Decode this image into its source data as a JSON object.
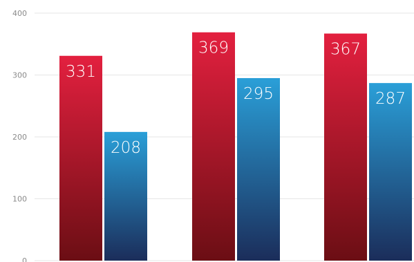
{
  "chart_data": {
    "type": "bar",
    "categories": [
      "",
      "",
      ""
    ],
    "series": [
      {
        "values": [
          331,
          369,
          367
        ],
        "color_top": "#e3203f",
        "color_bottom": "#6b0e14"
      },
      {
        "values": [
          208,
          295,
          287
        ],
        "color_top": "#2a9fd8",
        "color_bottom": "#1b2d5a"
      }
    ],
    "ylim": [
      0,
      400
    ],
    "yticks": [
      0,
      100,
      200,
      300,
      400
    ],
    "title": "",
    "xlabel": "",
    "ylabel": "",
    "grid": true,
    "data_labels": true
  }
}
